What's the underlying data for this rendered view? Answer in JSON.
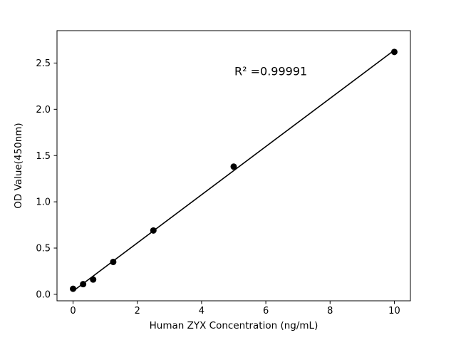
{
  "chart_data": {
    "type": "scatter",
    "title": "",
    "xlabel": "Human ZYX Concentration (ng/mL)",
    "ylabel": "OD Value(450nm)",
    "annotation": "R² =0.99991",
    "x": [
      0,
      0.313,
      0.625,
      1.25,
      2.5,
      5,
      10
    ],
    "y": [
      0.06,
      0.11,
      0.16,
      0.35,
      0.69,
      1.38,
      2.62
    ],
    "xlim": [
      -0.5,
      10.5
    ],
    "ylim": [
      -0.07,
      2.85
    ],
    "xticks": [
      0,
      2,
      4,
      6,
      8,
      10
    ],
    "xtick_labels": [
      "0",
      "2",
      "4",
      "6",
      "8",
      "10"
    ],
    "yticks": [
      0.0,
      0.5,
      1.0,
      1.5,
      2.0,
      2.5
    ],
    "ytick_labels": [
      "0.0",
      "0.5",
      "1.0",
      "1.5",
      "2.0",
      "2.5"
    ],
    "grid": false,
    "legend": null,
    "line_color": "#000000",
    "marker_color": "#000000",
    "background_color": "#ffffff"
  }
}
